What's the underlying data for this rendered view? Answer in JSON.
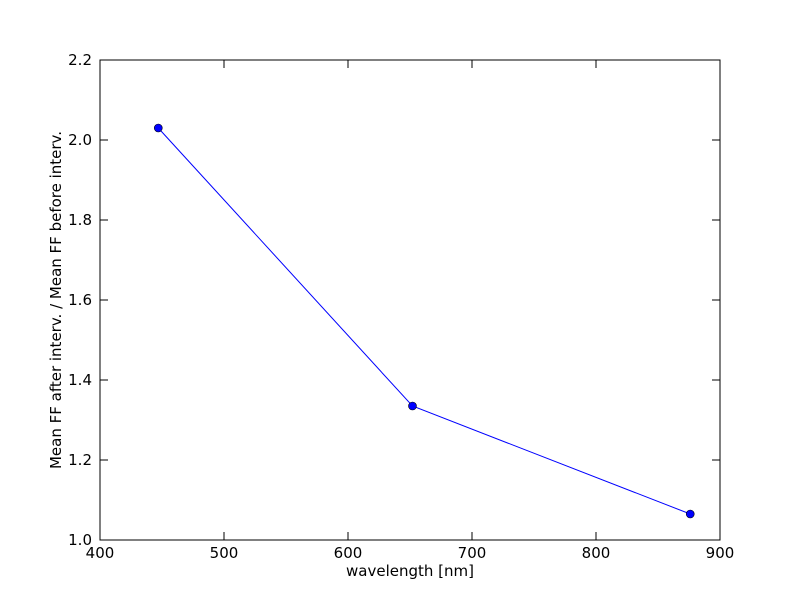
{
  "chart_data": {
    "type": "line",
    "xlabel": "wavelength [nm]",
    "ylabel": "Mean FF after interv. / Mean FF before interv.",
    "x": [
      447,
      652,
      876
    ],
    "series": [
      {
        "color": "#0000ff",
        "values": [
          2.03,
          1.335,
          1.065
        ]
      }
    ],
    "xlim": [
      400,
      900
    ],
    "xticks": [
      400,
      500,
      600,
      700,
      800,
      900
    ],
    "ylim": [
      1.0,
      2.2
    ],
    "yticks": [
      {
        "value": 1.0,
        "label": "1.0"
      },
      1.2,
      1.4,
      1.6,
      1.8,
      {
        "value": 2.0,
        "label": "2.0"
      },
      2.2
    ],
    "grid": false
  }
}
